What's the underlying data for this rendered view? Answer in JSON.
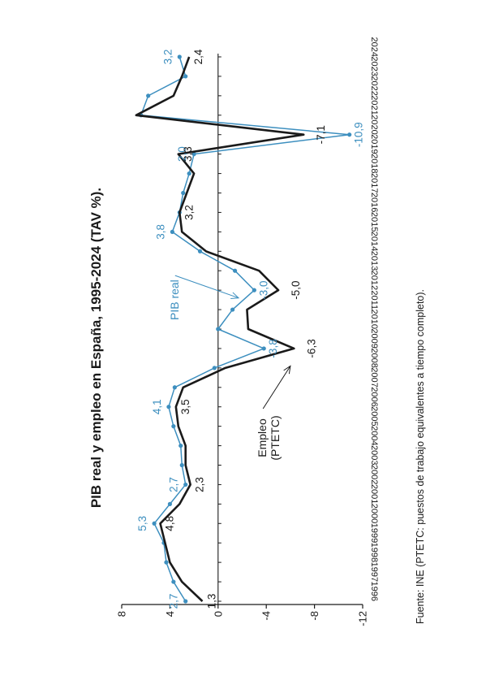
{
  "title": "PIB real y empleo en España, 1995-2024 (TAV %).",
  "source": "Fuente: INE (PTETC: puestos de trabajo equivalentes a tiempo completo).",
  "chart_data": {
    "type": "line",
    "x": [
      1996,
      1997,
      1998,
      1999,
      2000,
      2001,
      2002,
      2003,
      2004,
      2005,
      2006,
      2007,
      2008,
      2009,
      2010,
      2011,
      2012,
      2013,
      2014,
      2015,
      2016,
      2017,
      2018,
      2019,
      2020,
      2021,
      2022,
      2023,
      2024
    ],
    "x_tick_labels": [
      "1996",
      "1997",
      "1998",
      "1999",
      "2000",
      "2001",
      "2002",
      "2003",
      "2004",
      "2005",
      "2006",
      "2007",
      "2008",
      "2009",
      "2010",
      "2011",
      "2012",
      "2013",
      "2014",
      "2015",
      "2016",
      "2017",
      "2018",
      "2019",
      "2020",
      "2021",
      "2022",
      "2023",
      "2024"
    ],
    "ylim": [
      -12,
      8
    ],
    "y_ticks": [
      8,
      4,
      0,
      -4,
      -8,
      -12
    ],
    "y_tick_labels": [
      "8",
      "4",
      "0",
      "-4",
      "-8",
      "-12"
    ],
    "series": [
      {
        "key": "pib",
        "color": "#3d8fbf",
        "markers": true,
        "values": [
          2.7,
          3.7,
          4.3,
          4.5,
          5.3,
          4.0,
          2.7,
          3.0,
          3.1,
          3.7,
          4.1,
          3.6,
          0.3,
          -3.8,
          0.0,
          -1.2,
          -3.0,
          -1.4,
          1.5,
          3.8,
          3.2,
          2.9,
          2.4,
          2.0,
          -10.9,
          6.4,
          5.8,
          2.7,
          3.2
        ]
      },
      {
        "key": "empleo",
        "color": "#1a1a1a",
        "markers": false,
        "values": [
          1.3,
          3.0,
          4.0,
          4.4,
          4.8,
          3.2,
          2.3,
          2.7,
          2.7,
          3.3,
          3.5,
          2.9,
          -0.6,
          -6.3,
          -2.5,
          -2.4,
          -5.0,
          -3.4,
          1.0,
          3.0,
          3.2,
          2.6,
          2.0,
          3.3,
          -7.1,
          6.8,
          3.7,
          3.0,
          2.4
        ]
      }
    ],
    "data_labels": [
      {
        "text": "2,7",
        "x": 1996,
        "y": 2.7,
        "series": "pib"
      },
      {
        "text": "1,3",
        "x": 1996,
        "y": 1.3,
        "series": "empleo"
      },
      {
        "text": "5,3",
        "x": 2000,
        "y": 5.3,
        "series": "pib"
      },
      {
        "text": "4,8",
        "x": 2000,
        "y": 4.8,
        "series": "empleo"
      },
      {
        "text": "2,7",
        "x": 2002,
        "y": 2.7,
        "series": "pib"
      },
      {
        "text": "2,3",
        "x": 2002,
        "y": 2.3,
        "series": "empleo"
      },
      {
        "text": "4,1",
        "x": 2006,
        "y": 4.1,
        "series": "pib"
      },
      {
        "text": "3,5",
        "x": 2006,
        "y": 3.5,
        "series": "empleo"
      },
      {
        "text": "-3,8",
        "x": 2009,
        "y": -3.8,
        "series": "pib"
      },
      {
        "text": "-6,3",
        "x": 2009,
        "y": -6.3,
        "series": "empleo"
      },
      {
        "text": "-3,0",
        "x": 2012,
        "y": -3.0,
        "series": "pib"
      },
      {
        "text": "-5,0",
        "x": 2012,
        "y": -5.0,
        "series": "empleo"
      },
      {
        "text": "3,8",
        "x": 2015,
        "y": 3.8,
        "series": "pib"
      },
      {
        "text": "3,2",
        "x": 2016,
        "y": 3.2,
        "series": "empleo"
      },
      {
        "text": "2,0",
        "x": 2019,
        "y": 2.0,
        "series": "pib"
      },
      {
        "text": "3,3",
        "x": 2019,
        "y": 3.3,
        "series": "empleo"
      },
      {
        "text": "-10,9",
        "x": 2020,
        "y": -10.9,
        "series": "pib"
      },
      {
        "text": "-7,1",
        "x": 2020,
        "y": -7.1,
        "series": "empleo"
      },
      {
        "text": "3,2",
        "x": 2024,
        "y": 3.2,
        "series": "pib"
      },
      {
        "text": "2,4",
        "x": 2024,
        "y": 2.4,
        "series": "empleo"
      }
    ],
    "annotations": [
      {
        "key": "pib",
        "lines": [
          "PIB real"
        ],
        "x": 2011.5,
        "y": 3.3,
        "arrow_to": [
          2011.6,
          -1.7
        ]
      },
      {
        "key": "empleo",
        "lines": [
          "Empleo",
          "(PTETC)"
        ],
        "x": 2004.4,
        "y": -4.0,
        "arrow_to": [
          2008.1,
          -6.0
        ]
      }
    ]
  }
}
